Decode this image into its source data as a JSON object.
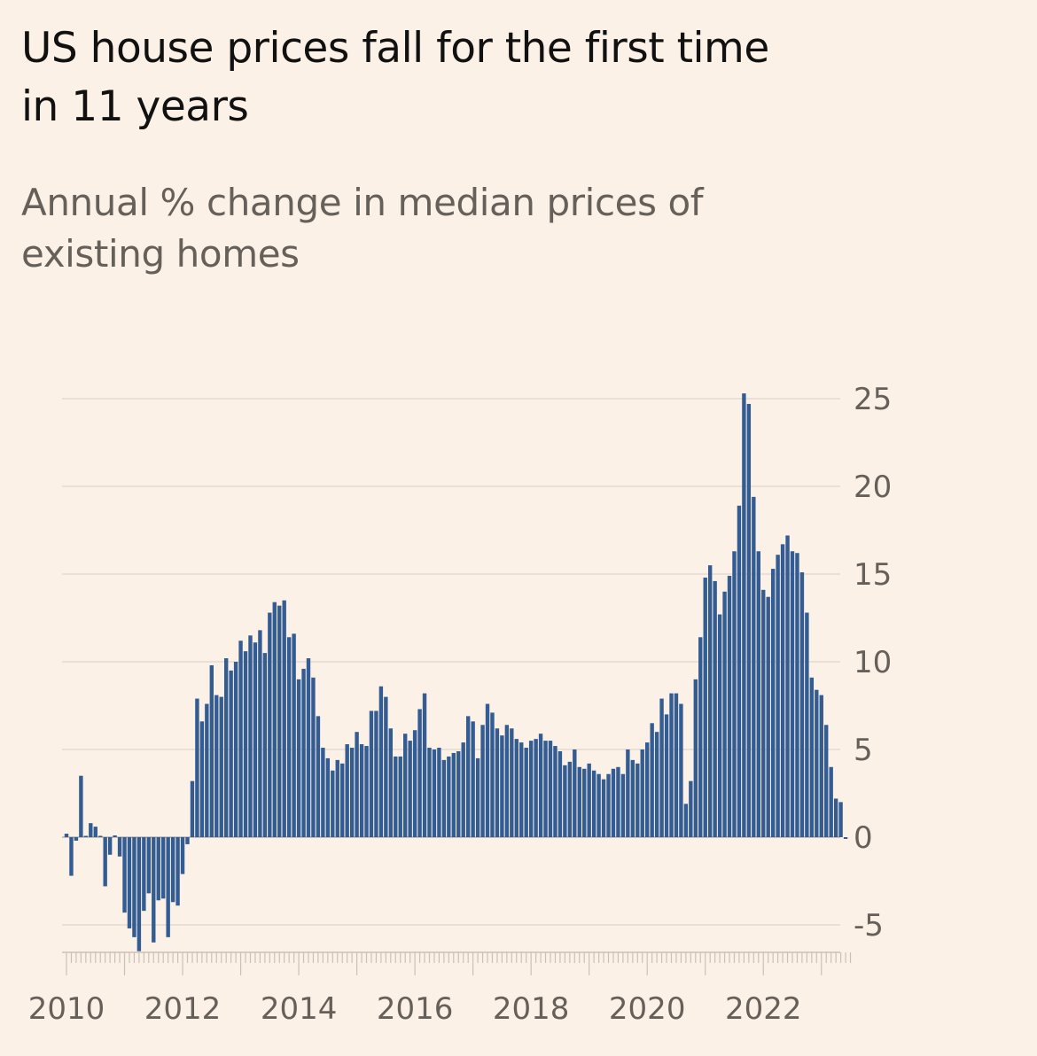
{
  "chart_data": {
    "type": "bar",
    "title": "US house prices fall for the first time in 11 years",
    "subtitle": "Annual % change in median prices of existing homes",
    "xlabel": "",
    "ylabel": "",
    "ylim": [
      -6.5,
      26
    ],
    "yticks": [
      25,
      20,
      15,
      10,
      5,
      0,
      -5
    ],
    "ytick_labels": [
      "25",
      "20",
      "15",
      "10",
      "5",
      "0",
      "-5"
    ],
    "xticks": [
      "2010",
      "2012",
      "2014",
      "2016",
      "2018",
      "2020",
      "2022"
    ],
    "x_start": "2010-01",
    "frequency": "monthly",
    "grid": true,
    "y_axis_position": "right",
    "bar_color": "#335c92",
    "series": [
      {
        "name": "Annual % change",
        "values": [
          0.2,
          -2.2,
          -0.2,
          3.5,
          0,
          0.8,
          0.6,
          0,
          -2.8,
          -1.0,
          0.1,
          -1.1,
          -4.3,
          -5.2,
          -5.7,
          -6.5,
          -4.2,
          -3.2,
          -6.0,
          -3.6,
          -3.5,
          -5.7,
          -3.7,
          -3.9,
          -2.1,
          -0.4,
          3.2,
          7.9,
          6.6,
          7.6,
          9.8,
          8.1,
          8.0,
          10.2,
          9.5,
          10.0,
          11.2,
          10.6,
          11.5,
          11.1,
          11.8,
          10.5,
          12.8,
          13.4,
          13.2,
          13.5,
          11.4,
          11.6,
          9.0,
          9.6,
          10.2,
          9.1,
          6.9,
          5.1,
          4.5,
          3.8,
          4.4,
          4.2,
          5.3,
          5.1,
          6.0,
          5.3,
          5.2,
          7.2,
          7.2,
          8.6,
          8.0,
          6.2,
          4.6,
          4.6,
          5.9,
          5.5,
          6.1,
          7.3,
          8.2,
          5.1,
          5.0,
          5.1,
          4.4,
          4.6,
          4.8,
          4.9,
          5.4,
          6.9,
          6.6,
          4.5,
          6.4,
          7.6,
          7.1,
          6.2,
          5.8,
          6.4,
          6.2,
          5.6,
          5.4,
          5.1,
          5.5,
          5.6,
          5.9,
          5.5,
          5.5,
          5.2,
          4.9,
          4.1,
          4.3,
          5.0,
          4.0,
          3.9,
          4.2,
          3.8,
          3.6,
          3.3,
          3.6,
          3.9,
          4.0,
          3.6,
          5.0,
          4.4,
          4.2,
          5.0,
          5.4,
          6.5,
          6.0,
          7.9,
          7.0,
          8.2,
          8.2,
          7.6,
          1.9,
          3.2,
          9.0,
          11.4,
          14.8,
          15.5,
          14.6,
          12.7,
          14.0,
          14.9,
          16.3,
          18.9,
          25.3,
          24.7,
          19.4,
          16.3,
          14.1,
          13.7,
          15.3,
          16.1,
          16.7,
          17.2,
          16.3,
          16.2,
          15.1,
          12.8,
          9.1,
          8.4,
          8.1,
          6.4,
          4.0,
          2.2,
          2.0,
          -0.1
        ]
      }
    ]
  }
}
